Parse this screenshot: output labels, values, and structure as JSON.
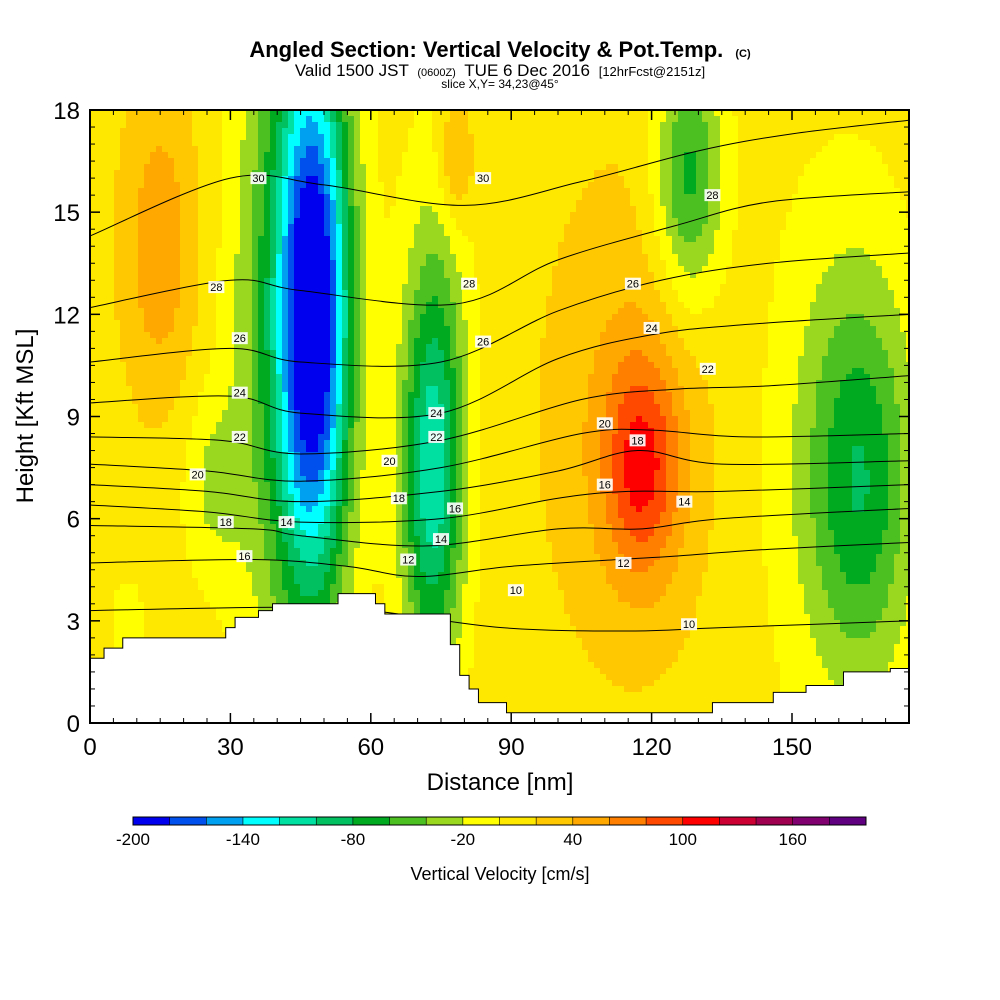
{
  "title": {
    "main": "Angled Section: Vertical Velocity & Pot.Temp.",
    "main_suffix": "(C)",
    "valid_prefix": "Valid 1500 JST",
    "valid_z": "(0600Z)",
    "valid_date": "TUE 6 Dec 2016",
    "fcst": "[12hrFcst@2151z]",
    "slice": "slice X,Y= 34,23@45°"
  },
  "chart_data": {
    "type": "heatmap",
    "xlabel": "Distance [nm]",
    "ylabel": "Height [Kft MSL]",
    "xlim": [
      0,
      175
    ],
    "ylim": [
      0,
      18
    ],
    "x_ticks": [
      0,
      30,
      60,
      90,
      120,
      150
    ],
    "x_tick_labels": [
      "0",
      "30",
      "60",
      "90",
      "120",
      "150"
    ],
    "y_ticks": [
      0,
      3,
      6,
      9,
      12,
      15,
      18
    ],
    "y_tick_labels": [
      "0",
      "3",
      "6",
      "9",
      "12",
      "15",
      "18"
    ],
    "grid": false,
    "terrain": [
      [
        0,
        1.9
      ],
      [
        3,
        2.2
      ],
      [
        7,
        2.5
      ],
      [
        19,
        2.5
      ],
      [
        29,
        2.8
      ],
      [
        31,
        3.1
      ],
      [
        36,
        3.3
      ],
      [
        39,
        3.5
      ],
      [
        52,
        3.5
      ],
      [
        53,
        3.8
      ],
      [
        58,
        3.8
      ],
      [
        61,
        3.5
      ],
      [
        63,
        3.2
      ],
      [
        75,
        3.2
      ],
      [
        77,
        2.3
      ],
      [
        79,
        1.4
      ],
      [
        81,
        1.0
      ],
      [
        83,
        0.6
      ],
      [
        89,
        0.3
      ],
      [
        130,
        0.3
      ],
      [
        133,
        0.6
      ],
      [
        142,
        0.6
      ],
      [
        146,
        0.9
      ],
      [
        151,
        0.9
      ],
      [
        153,
        1.1
      ],
      [
        159,
        1.1
      ],
      [
        161,
        1.5
      ],
      [
        171,
        1.6
      ],
      [
        175,
        1.6
      ]
    ],
    "velocity_field": {
      "units": "cm/s",
      "background": 10,
      "features": [
        {
          "x": 48,
          "y": 12,
          "rx": 8,
          "ry": 8.5,
          "value": -175
        },
        {
          "x": 43,
          "y": 12,
          "rx": 13,
          "ry": 11,
          "value": -80
        },
        {
          "x": 73,
          "y": 7,
          "rx": 7,
          "ry": 6,
          "value": -95
        },
        {
          "x": 74,
          "y": 10,
          "rx": 8,
          "ry": 8,
          "value": -40
        },
        {
          "x": 128,
          "y": 16,
          "rx": 8,
          "ry": 4,
          "value": -80
        },
        {
          "x": 165,
          "y": 7,
          "rx": 12,
          "ry": 6,
          "value": -65
        },
        {
          "x": 160,
          "y": 8,
          "rx": 18,
          "ry": 9,
          "value": -30
        },
        {
          "x": 118,
          "y": 7.5,
          "rx": 9,
          "ry": 3.5,
          "value": 75
        },
        {
          "x": 115,
          "y": 9,
          "rx": 20,
          "ry": 8,
          "value": 30
        },
        {
          "x": 15,
          "y": 14,
          "rx": 9,
          "ry": 5,
          "value": 45
        },
        {
          "x": 78,
          "y": 16.5,
          "rx": 4,
          "ry": 2,
          "value": 45
        },
        {
          "x": 26,
          "y": 7,
          "rx": 7,
          "ry": 3,
          "value": -30
        },
        {
          "x": 8,
          "y": 3,
          "rx": 6,
          "ry": 2,
          "value": -15
        }
      ]
    },
    "potential_temperature_contours": [
      {
        "level": 10,
        "points": [
          [
            0,
            3.3
          ],
          [
            40,
            3.4
          ],
          [
            60,
            3.3
          ],
          [
            88,
            2.8
          ],
          [
            115,
            2.7
          ],
          [
            135,
            2.8
          ],
          [
            175,
            3.0
          ]
        ]
      },
      {
        "level": 12,
        "points": [
          [
            0,
            4.7
          ],
          [
            35,
            4.8
          ],
          [
            55,
            4.6
          ],
          [
            70,
            4.3
          ],
          [
            90,
            4.6
          ],
          [
            113,
            4.8
          ],
          [
            125,
            4.9
          ],
          [
            145,
            5.1
          ],
          [
            175,
            5.3
          ]
        ]
      },
      {
        "level": 14,
        "points": [
          [
            0,
            5.8
          ],
          [
            35,
            5.7
          ],
          [
            45,
            5.5
          ],
          [
            72,
            5.2
          ],
          [
            100,
            5.7
          ],
          [
            118,
            5.7
          ],
          [
            135,
            6.0
          ],
          [
            175,
            6.3
          ]
        ]
      },
      {
        "level": 16,
        "points": [
          [
            0,
            6.4
          ],
          [
            25,
            6.2
          ],
          [
            45,
            5.9
          ],
          [
            75,
            6.0
          ],
          [
            100,
            6.6
          ],
          [
            115,
            6.8
          ],
          [
            135,
            6.8
          ],
          [
            175,
            7.0
          ]
        ]
      },
      {
        "level": 18,
        "points": [
          [
            0,
            7.0
          ],
          [
            25,
            6.8
          ],
          [
            45,
            6.5
          ],
          [
            75,
            6.8
          ],
          [
            100,
            7.4
          ],
          [
            117,
            8.0
          ],
          [
            135,
            7.6
          ],
          [
            175,
            7.7
          ]
        ]
      },
      {
        "level": 20,
        "points": [
          [
            0,
            7.6
          ],
          [
            25,
            7.4
          ],
          [
            45,
            7.1
          ],
          [
            75,
            7.5
          ],
          [
            105,
            8.5
          ],
          [
            120,
            8.6
          ],
          [
            140,
            8.4
          ],
          [
            175,
            8.5
          ]
        ]
      },
      {
        "level": 22,
        "points": [
          [
            0,
            8.4
          ],
          [
            28,
            8.3
          ],
          [
            45,
            7.9
          ],
          [
            75,
            8.3
          ],
          [
            105,
            9.5
          ],
          [
            125,
            9.8
          ],
          [
            145,
            9.9
          ],
          [
            175,
            10.2
          ]
        ]
      },
      {
        "level": 24,
        "points": [
          [
            0,
            9.4
          ],
          [
            30,
            9.6
          ],
          [
            45,
            9.1
          ],
          [
            75,
            9.1
          ],
          [
            100,
            10.7
          ],
          [
            120,
            11.4
          ],
          [
            140,
            11.7
          ],
          [
            175,
            12.0
          ]
        ]
      },
      {
        "level": 26,
        "points": [
          [
            0,
            10.6
          ],
          [
            30,
            11.0
          ],
          [
            45,
            10.6
          ],
          [
            75,
            10.6
          ],
          [
            100,
            12.1
          ],
          [
            122,
            13.0
          ],
          [
            145,
            13.5
          ],
          [
            175,
            13.8
          ]
        ]
      },
      {
        "level": 28,
        "points": [
          [
            0,
            12.2
          ],
          [
            30,
            13.0
          ],
          [
            45,
            12.7
          ],
          [
            78,
            12.3
          ],
          [
            100,
            13.6
          ],
          [
            125,
            14.6
          ],
          [
            145,
            15.3
          ],
          [
            175,
            15.6
          ]
        ]
      },
      {
        "level": 30,
        "points": [
          [
            0,
            14.3
          ],
          [
            30,
            16.0
          ],
          [
            50,
            15.8
          ],
          [
            80,
            15.2
          ],
          [
            105,
            15.9
          ],
          [
            130,
            16.8
          ],
          [
            150,
            17.3
          ],
          [
            175,
            17.7
          ]
        ]
      }
    ],
    "contour_labels": [
      {
        "x": 36,
        "y": 16.0,
        "text": "30"
      },
      {
        "x": 84,
        "y": 16.0,
        "text": "30"
      },
      {
        "x": 133,
        "y": 15.5,
        "text": "28"
      },
      {
        "x": 27,
        "y": 12.8,
        "text": "28"
      },
      {
        "x": 81,
        "y": 12.9,
        "text": "28"
      },
      {
        "x": 116,
        "y": 12.9,
        "text": "26"
      },
      {
        "x": 32,
        "y": 11.3,
        "text": "26"
      },
      {
        "x": 84,
        "y": 11.2,
        "text": "26"
      },
      {
        "x": 120,
        "y": 11.6,
        "text": "24"
      },
      {
        "x": 132,
        "y": 10.4,
        "text": "22"
      },
      {
        "x": 32,
        "y": 9.7,
        "text": "24"
      },
      {
        "x": 74,
        "y": 9.1,
        "text": "24"
      },
      {
        "x": 32,
        "y": 8.4,
        "text": "22"
      },
      {
        "x": 74,
        "y": 8.4,
        "text": "22"
      },
      {
        "x": 110,
        "y": 8.8,
        "text": "20"
      },
      {
        "x": 117,
        "y": 8.3,
        "text": "18"
      },
      {
        "x": 23,
        "y": 7.3,
        "text": "20"
      },
      {
        "x": 64,
        "y": 7.7,
        "text": "20"
      },
      {
        "x": 110,
        "y": 7.0,
        "text": "16"
      },
      {
        "x": 29,
        "y": 5.9,
        "text": "18"
      },
      {
        "x": 66,
        "y": 6.6,
        "text": "18"
      },
      {
        "x": 78,
        "y": 6.3,
        "text": "16"
      },
      {
        "x": 127,
        "y": 6.5,
        "text": "14"
      },
      {
        "x": 42,
        "y": 5.9,
        "text": "14"
      },
      {
        "x": 75,
        "y": 5.4,
        "text": "14"
      },
      {
        "x": 33,
        "y": 4.9,
        "text": "16"
      },
      {
        "x": 68,
        "y": 4.8,
        "text": "12"
      },
      {
        "x": 114,
        "y": 4.7,
        "text": "12"
      },
      {
        "x": 91,
        "y": 3.9,
        "text": "10"
      },
      {
        "x": 128,
        "y": 2.9,
        "text": "10"
      }
    ],
    "colorbar": {
      "label": "Vertical Velocity [cm/s]",
      "min": -200,
      "step": 20,
      "tick_labels": [
        "-200",
        "-140",
        "-80",
        "-20",
        "40",
        "100",
        "160"
      ],
      "colors": [
        "#0000ee",
        "#0050ee",
        "#00a0f0",
        "#00ffff",
        "#00e0a0",
        "#00c060",
        "#00aa20",
        "#4cc020",
        "#9ad820",
        "#ffff00",
        "#ffe800",
        "#ffc800",
        "#ffa800",
        "#ff8000",
        "#ff4800",
        "#ff0000",
        "#cc0033",
        "#a00050",
        "#800070",
        "#600080"
      ]
    }
  }
}
